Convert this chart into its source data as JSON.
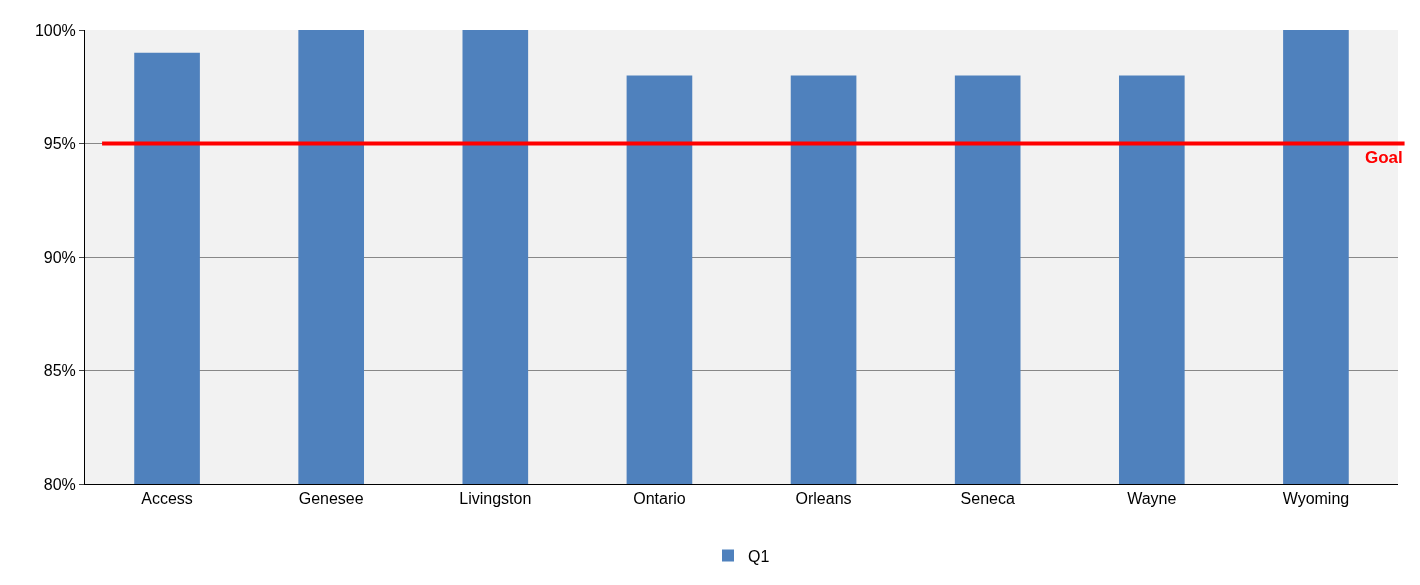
{
  "chart_data": {
    "type": "bar",
    "categories": [
      "Access",
      "Genesee",
      "Livingston",
      "Ontario",
      "Orleans",
      "Seneca",
      "Wayne",
      "Wyoming"
    ],
    "series": [
      {
        "name": "Q1",
        "color": "#4f81bd",
        "values": [
          99,
          100,
          100,
          98,
          98,
          98,
          98,
          100
        ]
      }
    ],
    "ylim": [
      80,
      100
    ],
    "yticks": [
      {
        "value": 80,
        "label": "80%"
      },
      {
        "value": 85,
        "label": "85%"
      },
      {
        "value": 90,
        "label": "90%"
      },
      {
        "value": 95,
        "label": "95%"
      },
      {
        "value": 100,
        "label": "100%"
      }
    ],
    "grid": "y",
    "legend": "bottom",
    "ref_lines": [
      {
        "axis": "y",
        "value": 95,
        "label": "Goal",
        "color": "#ff0000"
      }
    ]
  }
}
